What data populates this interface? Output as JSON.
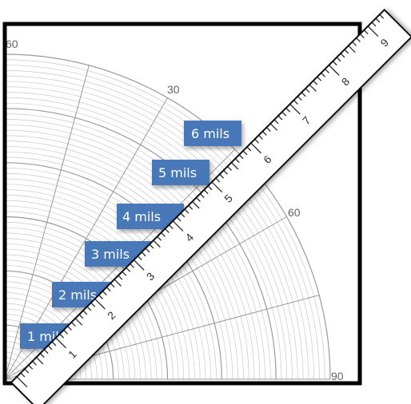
{
  "polar_grid": {
    "angle_labels": [
      "60",
      "30",
      "60",
      "90"
    ],
    "grid_color": "#c8c8c8",
    "major_ring_color": "#9a9a9a"
  },
  "mil_labels": [
    "1 mils",
    "2 mils",
    "3 mils",
    "4 mils",
    "5 mils",
    "6 mils"
  ],
  "label_box_color": "#4a78b8",
  "ruler": {
    "numbers": [
      "1",
      "2",
      "3",
      "4",
      "5",
      "6",
      "7",
      "8",
      "9"
    ],
    "minor_per_unit": 10,
    "tick_color": "#111111"
  }
}
